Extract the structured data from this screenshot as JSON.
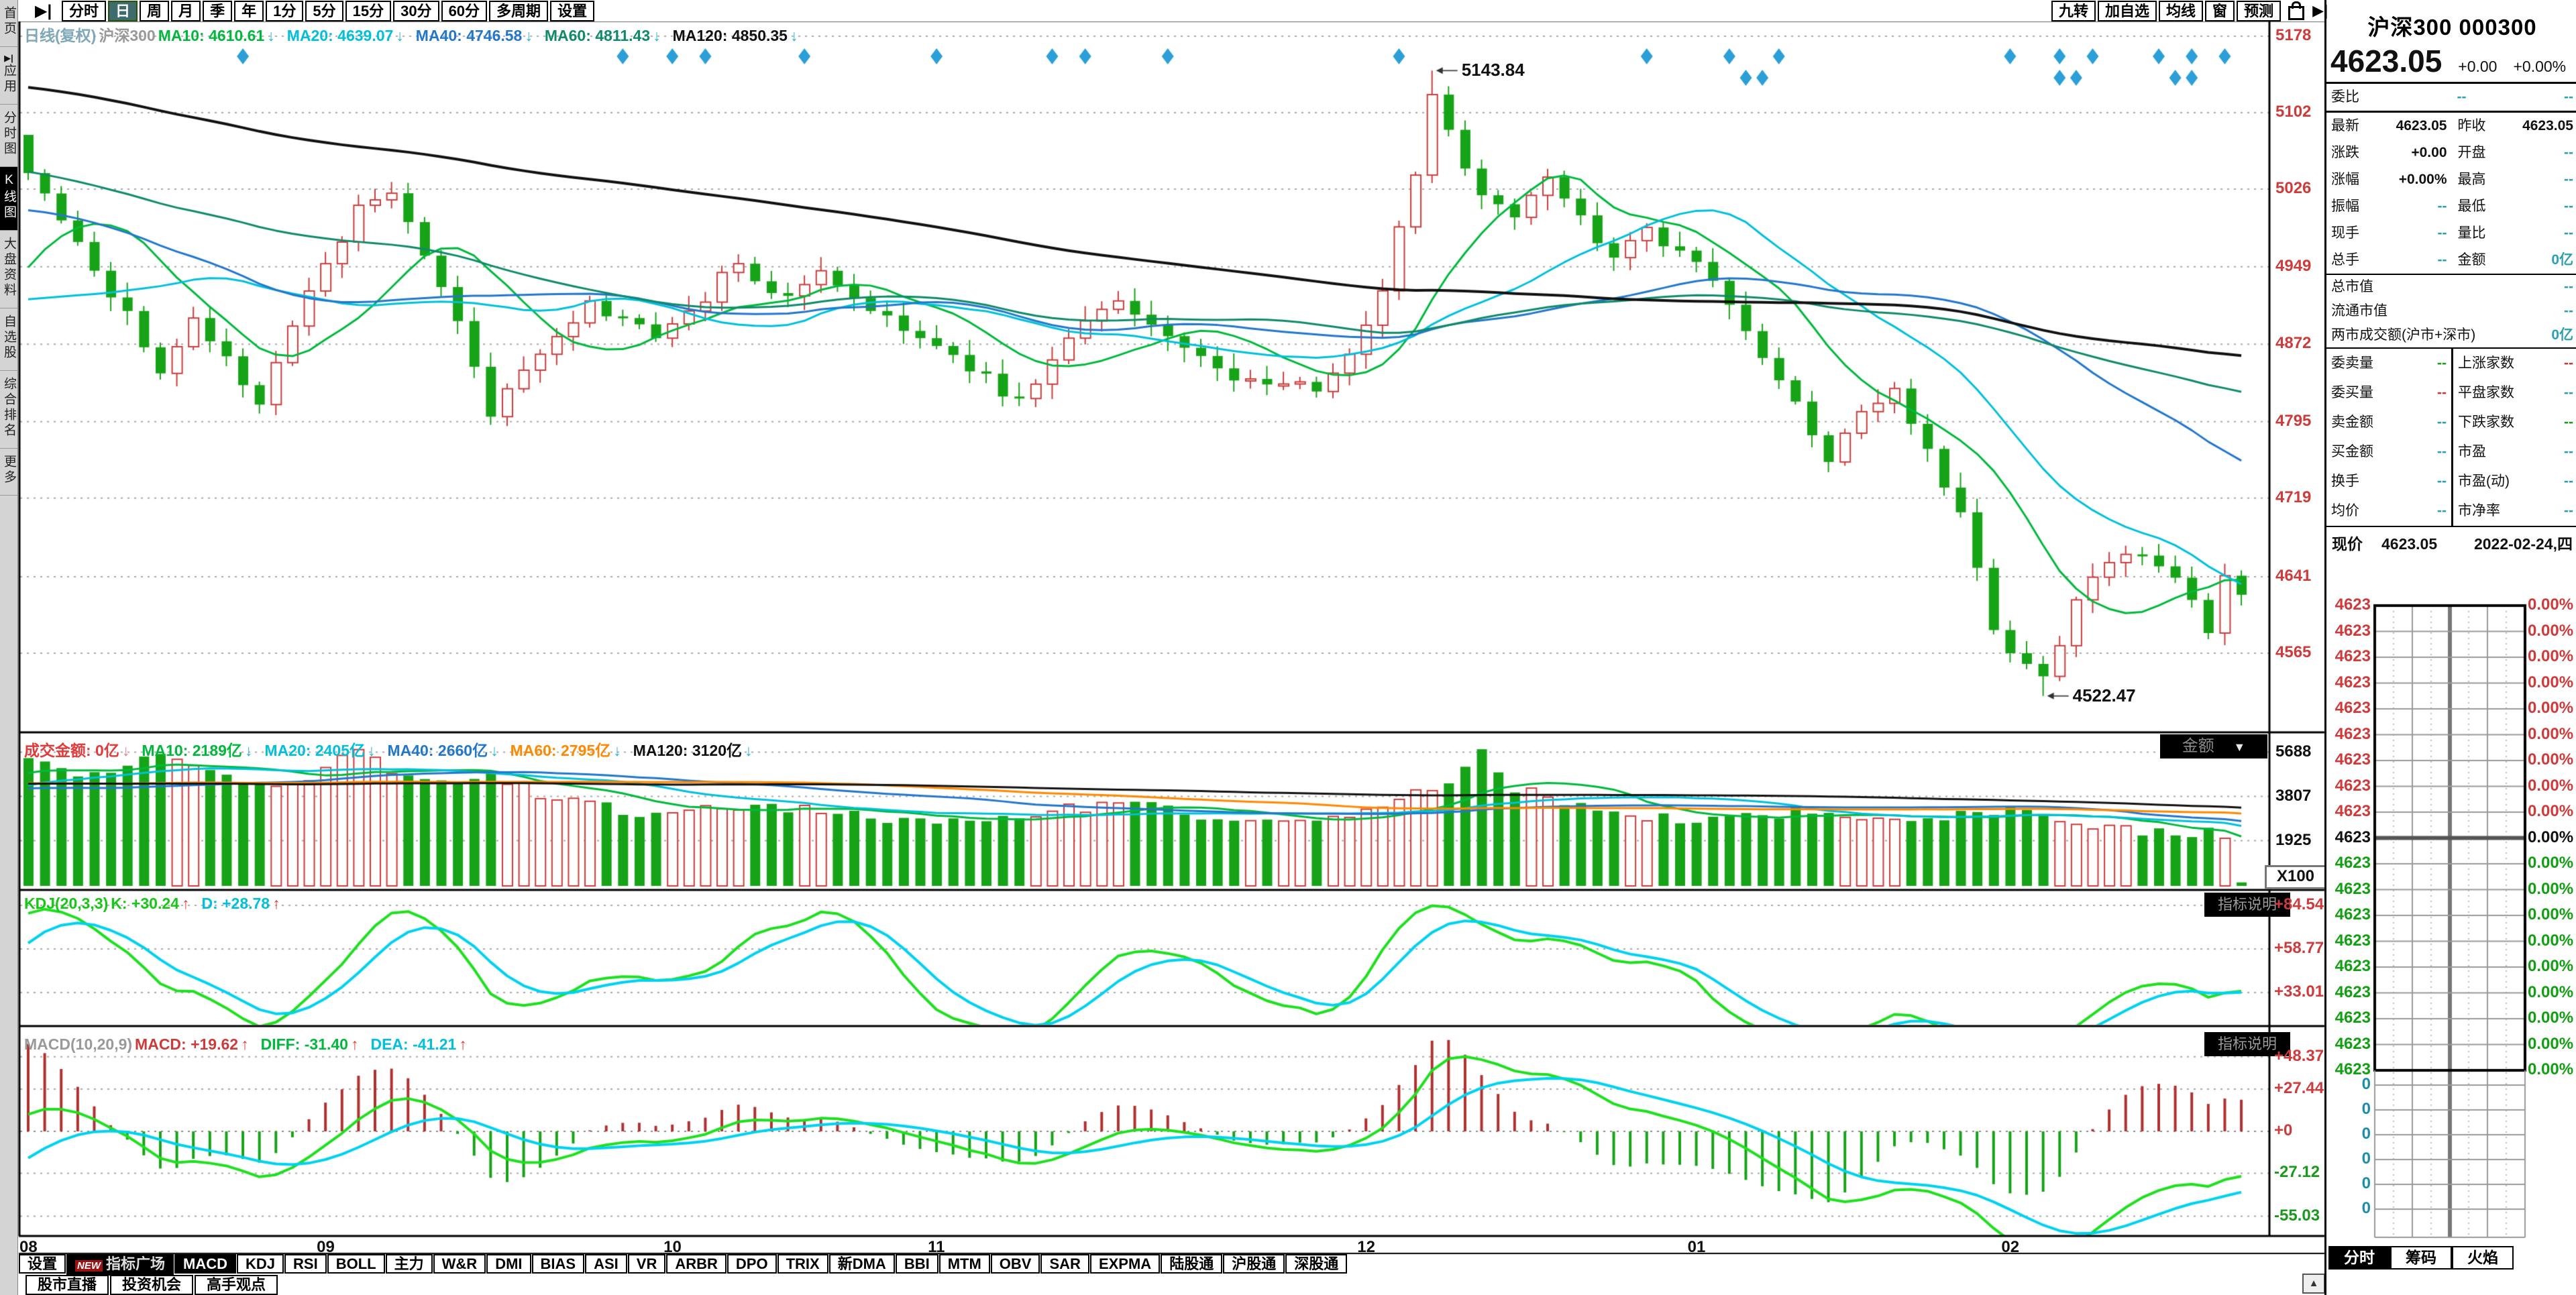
{
  "colors": {
    "up": "#cc3a3a",
    "down": "#17a317",
    "cyan": "#00c0dc",
    "blue": "#2277cc",
    "orange": "#ff8800",
    "black": "#111111",
    "teal_value": "#2aa0b4",
    "title": "#2aa8c0",
    "axis_red": "#cf3b3b",
    "axis_green": "#1a9a1a",
    "marker": "#2a9fd8",
    "kdj_k": "#1ee01e",
    "kdj_d": "#00d2f0",
    "ma10": "#00b93c",
    "ma60_main": "#0f8a6a"
  },
  "toolbar": {
    "collapse_icon": "▶|",
    "periods": [
      "分时",
      "日",
      "周",
      "月",
      "季",
      "年",
      "1分",
      "5分",
      "15分",
      "30分",
      "60分",
      "多周期",
      "设置"
    ],
    "selected": "日",
    "right_buttons": [
      "九转",
      "加自选",
      "均线",
      "窗",
      "预测"
    ]
  },
  "sidebar": {
    "items": [
      {
        "label": "首页"
      },
      {
        "label": "应用",
        "icon": "▶|"
      },
      {
        "label": "分时图"
      },
      {
        "label": "K线图"
      },
      {
        "label": "大盘资料"
      },
      {
        "label": "自选股"
      },
      {
        "label": "综合排名"
      },
      {
        "label": "更多"
      }
    ],
    "selected": "K线图"
  },
  "main_header": {
    "arrow_color": "#2ab4d6",
    "items": [
      {
        "t": "日线(复权)",
        "c": "#7fa8b8"
      },
      {
        "t": "沪深300",
        "c": "#999999"
      },
      {
        "t": "MA10: 4610.61",
        "c": "#00b93c",
        "a": "↓"
      },
      {
        "t": "MA20: 4639.07",
        "c": "#00c0dc",
        "a": "↓"
      },
      {
        "t": "MA40: 4746.58",
        "c": "#2277cc",
        "a": "↓"
      },
      {
        "t": "MA60: 4811.43",
        "c": "#0f8a6a",
        "a": "↓"
      },
      {
        "t": "MA120: 4850.35",
        "c": "#111111",
        "a": "↓"
      }
    ]
  },
  "vol_header": {
    "arrow_color": "#2ab4d6",
    "items": [
      {
        "t": "成交金额: 0亿",
        "c": "#e23b3b",
        "a": "↓",
        "ac": "#e87d7d"
      },
      {
        "t": "MA10: 2189亿",
        "c": "#00b93c",
        "a": "↓"
      },
      {
        "t": "MA20: 2405亿",
        "c": "#00c0dc",
        "a": "↓"
      },
      {
        "t": "MA40: 2660亿",
        "c": "#2277cc",
        "a": "↓"
      },
      {
        "t": "MA60: 2795亿",
        "c": "#ff8800",
        "a": "↓"
      },
      {
        "t": "MA120: 3120亿",
        "c": "#111111",
        "a": "↓"
      }
    ]
  },
  "kdj_header": {
    "arrow_color": "#e23b3b",
    "items": [
      {
        "t": "KDJ(20,3,3)",
        "c": "#14c814"
      },
      {
        "t": "K: +30.24",
        "c": "#14c814",
        "a": "↑",
        "ac": "#e23b3b"
      },
      {
        "t": "D: +28.78",
        "c": "#00c0dc",
        "a": "↑",
        "ac": "#e23b3b"
      }
    ]
  },
  "macd_header": {
    "arrow_color": "#e23b3b",
    "items": [
      {
        "t": "MACD(10,20,9)",
        "c": "#999999"
      },
      {
        "t": "MACD: +19.62",
        "c": "#cc3a3a",
        "a": "↑",
        "ac": "#e23b3b"
      },
      {
        "t": "DIFF: -31.40",
        "c": "#00b93c",
        "a": "↑",
        "ac": "#e23b3b"
      },
      {
        "t": "DEA: -41.21",
        "c": "#00c0dc",
        "a": "↑",
        "ac": "#e23b3b"
      }
    ]
  },
  "axes": {
    "price": [
      "5178",
      "5102",
      "5026",
      "4949",
      "4872",
      "4795",
      "4719",
      "4641",
      "4565"
    ],
    "amount": [
      "5688",
      "3807",
      "1925"
    ],
    "amount_unit": "X100",
    "kdj": [
      "+84.54",
      "+58.77",
      "+33.01"
    ],
    "macd": [
      {
        "t": "+48.37",
        "c": "red"
      },
      {
        "t": "+27.44",
        "c": "red"
      },
      {
        "t": "+0",
        "c": "red"
      },
      {
        "t": "-27.12",
        "c": "green"
      },
      {
        "t": "-55.03",
        "c": "green"
      }
    ]
  },
  "annotations": {
    "high": "5143.84",
    "low": "4522.47"
  },
  "misc": {
    "amount_dropdown": "金额",
    "dropdown_arrow": "▼",
    "indicator_note": "指标说明",
    "up_arrow": "▲"
  },
  "bottom_tabs": {
    "settings": "设置",
    "plaza": "指标广场",
    "new_badge": "NEW",
    "selected": "MACD",
    "items": [
      "设置",
      "指标广场",
      "MACD",
      "KDJ",
      "RSI",
      "BOLL",
      "主力",
      "W&R",
      "DMI",
      "BIAS",
      "ASI",
      "VR",
      "ARBR",
      "DPO",
      "TRIX",
      "新DMA",
      "BBI",
      "MTM",
      "OBV",
      "SAR",
      "EXPMA",
      "陆股通",
      "沪股通",
      "深股通"
    ]
  },
  "bottom_links": [
    "股市直播",
    "投资机会",
    "高手观点"
  ],
  "quote_panel": {
    "title": "沪深300 000300",
    "price": "4623.05",
    "change": "+0.00",
    "change_pct": "+0.00%",
    "weibi_row": [
      "委比",
      "--",
      "--"
    ],
    "pair_rows": [
      [
        "最新",
        "4623.05",
        "k",
        "昨收",
        "4623.05",
        "k"
      ],
      [
        "涨跌",
        "+0.00",
        "k",
        "开盘",
        "--",
        "c"
      ],
      [
        "涨幅",
        "+0.00%",
        "k",
        "最高",
        "--",
        "c"
      ],
      [
        "振幅",
        "--",
        "c",
        "最低",
        "--",
        "c"
      ],
      [
        "现手",
        "--",
        "c",
        "量比",
        "--",
        "c"
      ],
      [
        "总手",
        "--",
        "c",
        "金额",
        "0亿",
        "c"
      ]
    ],
    "single_rows": [
      [
        "总市值",
        "--",
        "c"
      ],
      [
        "流通市值",
        "--",
        "c"
      ],
      [
        "两市成交额(沪市+深市)",
        "0亿",
        "c"
      ]
    ],
    "left_rows": [
      [
        "委卖量",
        "--",
        "g"
      ],
      [
        "委买量",
        "--",
        "r"
      ],
      [
        "卖金额",
        "--",
        "c"
      ],
      [
        "买金额",
        "--",
        "c"
      ],
      [
        "换手",
        "--",
        "c"
      ],
      [
        "均价",
        "--",
        "c"
      ]
    ],
    "right_rows": [
      [
        "上涨家数",
        "--",
        "r"
      ],
      [
        "平盘家数",
        "--",
        "c"
      ],
      [
        "下跌家数",
        "--",
        "g"
      ],
      [
        "市盈",
        "--",
        "c"
      ],
      [
        "市盈(动)",
        "--",
        "c"
      ],
      [
        "市净率",
        "--",
        "c"
      ]
    ],
    "current_label": "现价",
    "current_price": "4623.05",
    "current_date": "2022-02-24,四",
    "ladder": {
      "price_text": "4623",
      "pct_text": "0.00%",
      "red_rows": 9,
      "black_rows": 1,
      "green_rows": 9,
      "zero_text": "0",
      "zero_rows": 6
    },
    "tabs": [
      "分时",
      "筹码",
      "火焰"
    ],
    "selected_tab": "分时"
  },
  "chart_data": {
    "type": "candlestick",
    "symbol": "沪深300",
    "code": "000300",
    "period": "日线(复权)",
    "date": "2022-02-24",
    "last_close": 4623.05,
    "price_axis_ticks": [
      5178,
      5102,
      5026,
      4949,
      4872,
      4795,
      4719,
      4641,
      4565
    ],
    "amount_axis_ticks": [
      5688,
      3807,
      1925
    ],
    "amount_unit": "X100",
    "kdj_axis_ticks": [
      84.54,
      58.77,
      33.01
    ],
    "macd_axis_ticks": [
      48.37,
      27.44,
      0,
      -27.12,
      -55.03
    ],
    "months": [
      {
        "label": "08",
        "day": 0
      },
      {
        "label": "09",
        "day": 18
      },
      {
        "label": "10",
        "day": 39
      },
      {
        "label": "11",
        "day": 55
      },
      {
        "label": "12",
        "day": 81
      },
      {
        "label": "01",
        "day": 101
      },
      {
        "label": "02",
        "day": 120
      }
    ],
    "num_days": 135,
    "close_waypoints": [
      [
        0,
        5042
      ],
      [
        2,
        4995
      ],
      [
        4,
        4945
      ],
      [
        6,
        4905
      ],
      [
        8,
        4843
      ],
      [
        10,
        4898
      ],
      [
        12,
        4860
      ],
      [
        14,
        4812
      ],
      [
        16,
        4890
      ],
      [
        18,
        4952
      ],
      [
        20,
        5010
      ],
      [
        22,
        5022
      ],
      [
        24,
        4960
      ],
      [
        26,
        4895
      ],
      [
        28,
        4800
      ],
      [
        31,
        4862
      ],
      [
        34,
        4915
      ],
      [
        36,
        4898
      ],
      [
        38,
        4878
      ],
      [
        40,
        4905
      ],
      [
        43,
        4952
      ],
      [
        46,
        4920
      ],
      [
        48,
        4945
      ],
      [
        51,
        4905
      ],
      [
        54,
        4878
      ],
      [
        57,
        4845
      ],
      [
        60,
        4818
      ],
      [
        63,
        4878
      ],
      [
        66,
        4915
      ],
      [
        69,
        4880
      ],
      [
        72,
        4848
      ],
      [
        75,
        4832
      ],
      [
        78,
        4825
      ],
      [
        80,
        4862
      ],
      [
        82,
        4925
      ],
      [
        84,
        5040
      ],
      [
        85,
        5120
      ],
      [
        86,
        5085
      ],
      [
        88,
        5020
      ],
      [
        90,
        4998
      ],
      [
        92,
        5038
      ],
      [
        94,
        5000
      ],
      [
        96,
        4958
      ],
      [
        98,
        4988
      ],
      [
        100,
        4965
      ],
      [
        102,
        4935
      ],
      [
        104,
        4885
      ],
      [
        107,
        4815
      ],
      [
        109,
        4755
      ],
      [
        111,
        4805
      ],
      [
        113,
        4828
      ],
      [
        115,
        4768
      ],
      [
        117,
        4705
      ],
      [
        119,
        4588
      ],
      [
        120,
        4565
      ],
      [
        122,
        4542
      ],
      [
        124,
        4618
      ],
      [
        126,
        4655
      ],
      [
        128,
        4662
      ],
      [
        130,
        4640
      ],
      [
        132,
        4585
      ],
      [
        133,
        4642
      ],
      [
        134,
        4623.05
      ]
    ],
    "amount_waypoints": [
      [
        0,
        5200
      ],
      [
        4,
        4800
      ],
      [
        8,
        5500
      ],
      [
        12,
        4600
      ],
      [
        16,
        4400
      ],
      [
        20,
        5688
      ],
      [
        24,
        4300
      ],
      [
        28,
        4600
      ],
      [
        32,
        3700
      ],
      [
        36,
        3200
      ],
      [
        40,
        3100
      ],
      [
        44,
        3400
      ],
      [
        48,
        3200
      ],
      [
        52,
        2900
      ],
      [
        56,
        2900
      ],
      [
        60,
        3100
      ],
      [
        64,
        3300
      ],
      [
        68,
        3400
      ],
      [
        72,
        2900
      ],
      [
        76,
        2800
      ],
      [
        80,
        2900
      ],
      [
        84,
        4200
      ],
      [
        86,
        4400
      ],
      [
        88,
        5750
      ],
      [
        90,
        4100
      ],
      [
        93,
        3600
      ],
      [
        96,
        3100
      ],
      [
        100,
        2800
      ],
      [
        104,
        2900
      ],
      [
        108,
        3300
      ],
      [
        111,
        2900
      ],
      [
        114,
        2600
      ],
      [
        117,
        3100
      ],
      [
        120,
        3300
      ],
      [
        123,
        2800
      ],
      [
        126,
        2400
      ],
      [
        129,
        2200
      ],
      [
        132,
        2300
      ],
      [
        133,
        2200
      ],
      [
        134,
        150
      ]
    ],
    "high_point": {
      "day": 85,
      "price": 5143.84
    },
    "low_point": {
      "day": 122,
      "price": 4522.47
    },
    "ma": {
      "MA10": 4610.61,
      "MA20": 4639.07,
      "MA40": 4746.58,
      "MA60": 4811.43,
      "MA120": 4850.35
    },
    "amount_ma": {
      "MA10": 2189,
      "MA20": 2405,
      "MA40": 2660,
      "MA60": 2795,
      "MA120": 3120
    },
    "kdj_last": {
      "k": 30.24,
      "d": 28.78
    },
    "macd_last": {
      "macd": 19.62,
      "diff": -31.4,
      "dea": -41.21
    },
    "event_marker_days_row1": [
      13,
      36,
      39,
      41,
      47,
      55,
      62,
      64,
      69,
      83,
      98,
      103,
      106,
      120,
      123,
      125,
      129,
      131,
      133
    ],
    "event_marker_days_row2": [
      104,
      105,
      123,
      124,
      130,
      131
    ]
  }
}
